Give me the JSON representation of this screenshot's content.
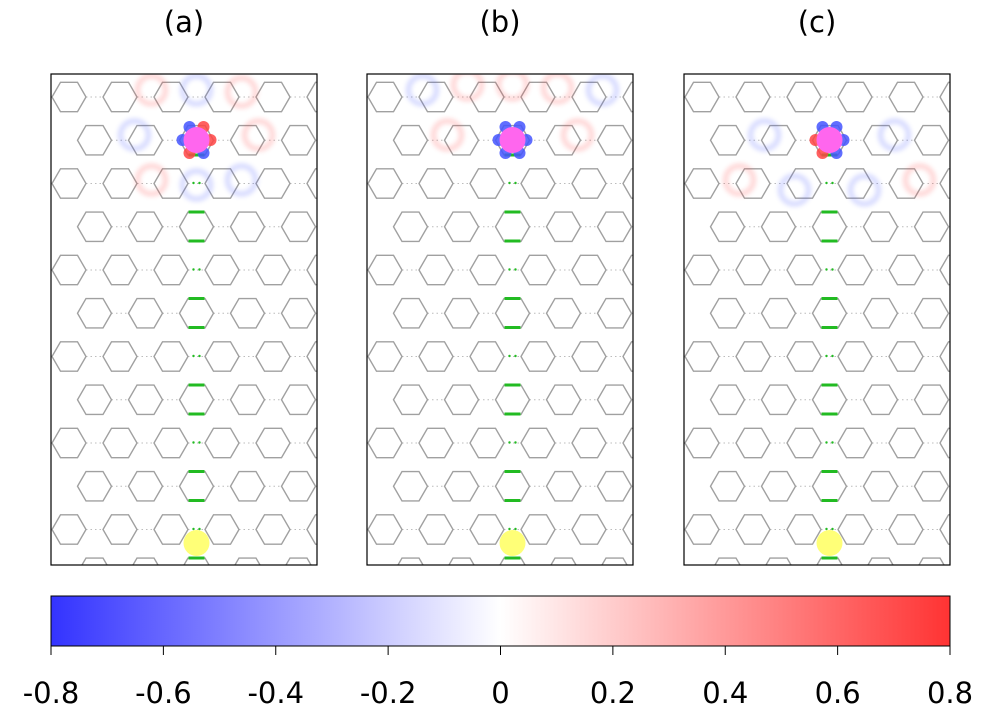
{
  "panels": [
    {
      "label": "(a)",
      "id": "a"
    },
    {
      "label": "(b)",
      "id": "b"
    },
    {
      "label": "(c)",
      "id": "c"
    }
  ],
  "colorbar": {
    "min": -0.8,
    "max": 0.8,
    "low_color": "#3333ff",
    "mid_color": "#ffffff",
    "high_color": "#ff3333",
    "tick_values": [
      -0.8,
      -0.6,
      -0.4,
      -0.2,
      0,
      0.2,
      0.4,
      0.6,
      0.8
    ],
    "tick_labels": [
      "-0.8",
      "-0.6",
      "-0.4",
      "-0.2",
      "0",
      "0.2",
      "0.4",
      "0.6",
      "0.8"
    ]
  },
  "colors": {
    "lattice": "#a0a0a0",
    "path": "#22bb22",
    "source_site": "#ff66ee",
    "drain_site": "#ffff77",
    "positive": "#ff4444",
    "negative": "#4455ff"
  }
}
